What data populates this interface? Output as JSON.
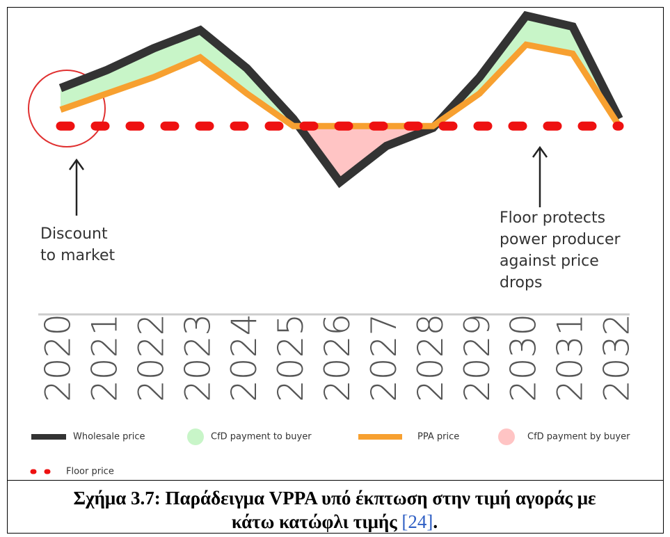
{
  "chart_data": {
    "type": "line",
    "categories": [
      "2020",
      "2021",
      "2022",
      "2023",
      "2024",
      "2025",
      "2026",
      "2027",
      "2028",
      "2029",
      "2030",
      "2031",
      "2032"
    ],
    "ylim": [
      0,
      100
    ],
    "series": [
      {
        "name": "Wholesale price",
        "color": "#333333",
        "values": [
          59,
          69,
          81,
          91,
          70,
          42,
          7,
          27,
          37,
          65,
          99,
          93,
          42
        ]
      },
      {
        "name": "PPA price",
        "color": "#f7a030",
        "values": [
          47,
          56,
          65,
          76,
          56,
          38,
          38,
          38,
          38,
          56,
          83,
          78,
          38
        ]
      },
      {
        "name": "Floor price",
        "color": "#ee1111",
        "dashed": true,
        "values": [
          38,
          38,
          38,
          38,
          38,
          38,
          38,
          38,
          38,
          38,
          38,
          38,
          38
        ]
      }
    ],
    "areas": [
      {
        "name": "CfD payment to buyer",
        "color": "#c8f5c8"
      },
      {
        "name": "CfD payment by buyer",
        "color": "#ffc4c4"
      }
    ],
    "annotations": [
      {
        "lines": [
          "Discount",
          "to market"
        ]
      },
      {
        "lines": [
          "Floor protects",
          "power producer",
          "against price",
          "drops"
        ]
      }
    ]
  },
  "caption": {
    "line1": "Σχήμα 3.7: Παράδειγμα VPPA υπό έκπτωση στην τιμή αγοράς με",
    "line2": "κάτω κατώφλι τιμής",
    "citation": "[24]",
    "end": "."
  }
}
